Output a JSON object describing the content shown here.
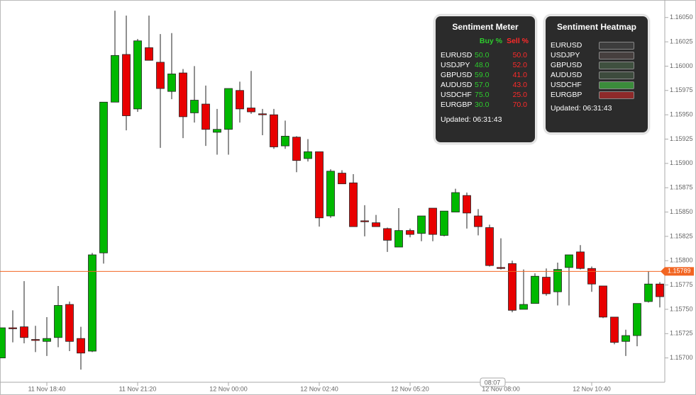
{
  "chart_data": {
    "type": "candlestick",
    "categories": [
      null,
      null,
      null,
      null,
      "11 Nov 18:40",
      null,
      null,
      null,
      null,
      null,
      null,
      null,
      "11 Nov 21:20",
      null,
      null,
      null,
      null,
      null,
      null,
      null,
      "12 Nov 00:00",
      null,
      null,
      null,
      null,
      null,
      null,
      null,
      "12 Nov 02:40",
      null,
      null,
      null,
      null,
      null,
      null,
      null,
      "12 Nov 05:20",
      null,
      null,
      null,
      null,
      null,
      null,
      null,
      "12 Nov 08:00",
      null,
      null,
      null,
      null,
      null,
      null,
      null,
      "12 Nov 10:40",
      null,
      null,
      null,
      null,
      null,
      null
    ],
    "open": [
      1.157,
      1.15731,
      1.15732,
      1.15719,
      1.15717,
      1.15721,
      1.15755,
      1.1572,
      1.15707,
      1.15808,
      1.15963,
      1.16012,
      1.15956,
      1.16019,
      1.16004,
      1.15974,
      1.15993,
      1.15952,
      1.15961,
      1.15932,
      1.15935,
      1.15975,
      1.15957,
      1.15951,
      1.1595,
      1.15918,
      1.15927,
      1.15905,
      1.15912,
      1.15846,
      1.1589,
      1.1588,
      1.15841,
      1.15839,
      1.15833,
      1.15814,
      1.15831,
      1.15828,
      1.15854,
      1.15826,
      1.1585,
      1.15867,
      1.15846,
      1.15834,
      1.15793,
      1.15797,
      1.1575,
      1.15756,
      1.15783,
      1.15768,
      1.15793,
      1.15809,
      1.15792,
      1.15774,
      1.15742,
      1.15717,
      1.15723,
      1.15758,
      1.15776
    ],
    "high": [
      1.15731,
      1.15749,
      1.15779,
      1.15733,
      1.15742,
      1.15774,
      1.15758,
      1.15732,
      1.15808,
      1.15963,
      1.16057,
      1.16052,
      1.16028,
      1.16052,
      1.16033,
      1.16034,
      1.15997,
      1.16,
      1.1598,
      1.15956,
      1.15977,
      1.15984,
      1.15995,
      1.15956,
      1.15956,
      1.15944,
      1.15928,
      1.15925,
      1.15912,
      1.15894,
      1.15893,
      1.15889,
      1.15857,
      1.15847,
      1.15834,
      1.15854,
      1.15833,
      1.15846,
      1.15854,
      1.15851,
      1.15874,
      1.1587,
      1.15853,
      1.15837,
      1.15823,
      1.158,
      1.15791,
      1.15787,
      1.15792,
      1.15798,
      1.15806,
      1.15816,
      1.15794,
      1.15774,
      1.15742,
      1.15729,
      1.15756,
      1.15789,
      1.15778
    ],
    "low": [
      1.157,
      1.15716,
      1.15715,
      1.15706,
      1.15702,
      1.15711,
      1.15707,
      1.15688,
      1.15706,
      1.15797,
      1.15963,
      1.15934,
      1.15953,
      1.16006,
      1.15916,
      1.15966,
      1.15926,
      1.15942,
      1.15918,
      1.15909,
      1.15909,
      1.15942,
      1.15951,
      1.15929,
      1.15915,
      1.15915,
      1.15891,
      1.15902,
      1.15835,
      1.15844,
      1.15879,
      1.15835,
      1.15825,
      1.15835,
      1.15809,
      1.15814,
      1.15824,
      1.1582,
      1.1582,
      1.15825,
      1.1585,
      1.15833,
      1.15826,
      1.15794,
      1.15791,
      1.15747,
      1.1575,
      1.15756,
      1.15764,
      1.15754,
      1.15754,
      1.15791,
      1.15768,
      1.15741,
      1.15714,
      1.15702,
      1.15712,
      1.15757,
      1.15752
    ],
    "close": [
      1.15731,
      1.1573,
      1.15721,
      1.15718,
      1.1572,
      1.15754,
      1.15717,
      1.15705,
      1.15806,
      1.15963,
      1.16011,
      1.15949,
      1.16026,
      1.16006,
      1.15977,
      1.15992,
      1.15948,
      1.15965,
      1.15935,
      1.15935,
      1.15977,
      1.15956,
      1.15953,
      1.1595,
      1.15917,
      1.15928,
      1.15903,
      1.15912,
      1.15844,
      1.15892,
      1.15879,
      1.15835,
      1.1584,
      1.15835,
      1.15821,
      1.15831,
      1.15827,
      1.15846,
      1.15827,
      1.15851,
      1.1587,
      1.15849,
      1.15835,
      1.15795,
      1.15792,
      1.15749,
      1.15755,
      1.15784,
      1.15766,
      1.15791,
      1.15806,
      1.15792,
      1.15776,
      1.15742,
      1.15716,
      1.15723,
      1.15756,
      1.15776,
      1.15763
    ],
    "up_color": "#00b800",
    "down_color": "#e80000",
    "ylim": [
      1.15675,
      1.16068
    ],
    "yticks": [
      {
        "value": 1.157,
        "label": "1.15700"
      },
      {
        "value": 1.15725,
        "label": "1.15725"
      },
      {
        "value": 1.1575,
        "label": "1.15750"
      },
      {
        "value": 1.15775,
        "label": "1.15775"
      },
      {
        "value": 1.158,
        "label": "1.15800"
      },
      {
        "value": 1.15825,
        "label": "1.15825"
      },
      {
        "value": 1.1585,
        "label": "1.15850"
      },
      {
        "value": 1.15875,
        "label": "1.15875"
      },
      {
        "value": 1.159,
        "label": "1.15900"
      },
      {
        "value": 1.15925,
        "label": "1.15925"
      },
      {
        "value": 1.1595,
        "label": "1.15950"
      },
      {
        "value": 1.15975,
        "label": "1.15975"
      },
      {
        "value": 1.16,
        "label": "1.16000"
      },
      {
        "value": 1.16025,
        "label": "1.16025"
      },
      {
        "value": 1.1605,
        "label": "1.16050"
      }
    ],
    "current_price": 1.15789,
    "current_price_color": "#f26522",
    "crosshair_time": "08:07"
  },
  "sentiment_meter": {
    "title": "Sentiment Meter",
    "headers": [
      "Buy %",
      "Sell %"
    ],
    "rows": [
      [
        "EURUSD",
        "50.0",
        "50.0"
      ],
      [
        "USDJPY",
        "48.0",
        "52.0"
      ],
      [
        "GBPUSD",
        "59.0",
        "41.0"
      ],
      [
        "AUDUSD",
        "57.0",
        "43.0"
      ],
      [
        "USDCHF",
        "75.0",
        "25.0"
      ],
      [
        "EURGBP",
        "30.0",
        "70.0"
      ]
    ],
    "updated": "Updated: 06:31:43"
  },
  "sentiment_heatmap": {
    "title": "Sentiment Heatmap",
    "rows": [
      {
        "pair": "EURUSD",
        "color": "#3d3d3d"
      },
      {
        "pair": "USDJPY",
        "color": "#463f3e"
      },
      {
        "pair": "GBPUSD",
        "color": "#3f503f"
      },
      {
        "pair": "AUDUSD",
        "color": "#3d4b3d"
      },
      {
        "pair": "USDCHF",
        "color": "#3b8c3b"
      },
      {
        "pair": "EURGBP",
        "color": "#8e2a2a"
      }
    ],
    "updated": "Updated: 06:31:43"
  }
}
